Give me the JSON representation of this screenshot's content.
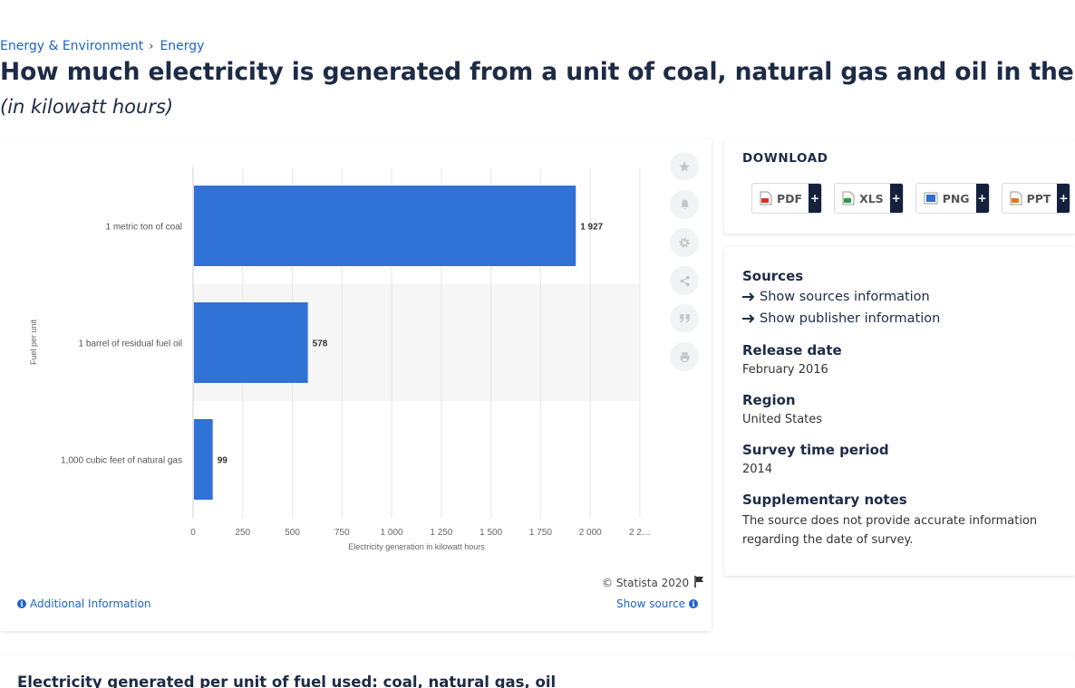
{
  "breadcrumb": {
    "items": [
      "Energy & Environment",
      "Energy"
    ],
    "separator": "›"
  },
  "header": {
    "title": "How much electricity is generated from a unit of coal, natural gas and oil in the U.S.?",
    "subtitle": "(in kilowatt hours)"
  },
  "chart_data": {
    "type": "bar",
    "orientation": "horizontal",
    "categories": [
      "1 metric ton of coal",
      "1 barrel of residual fuel oil",
      "1,000 cubic feet of natural gas"
    ],
    "values": [
      1927,
      578,
      99
    ],
    "value_labels": [
      "1 927",
      "578",
      "99"
    ],
    "xlabel": "Electricity generation in kilowatt hours",
    "ylabel": "Fuel per unit",
    "xticks": [
      0,
      250,
      500,
      750,
      1000,
      1250,
      1500,
      1750,
      2000,
      2250
    ],
    "xtick_labels": [
      "0",
      "250",
      "500",
      "750",
      "1 000",
      "1 250",
      "1 500",
      "1 750",
      "2 000",
      "2 2…"
    ],
    "xlim": [
      0,
      2250
    ],
    "grid": true,
    "bar_color": "#3072d6"
  },
  "footer": {
    "copyright": "© Statista 2020",
    "additional_info": "Additional Information",
    "show_source": "Show source"
  },
  "tools": [
    "star-icon",
    "bell-icon",
    "gear-icon",
    "share-icon",
    "quote-icon",
    "print-icon"
  ],
  "download": {
    "title": "DOWNLOAD",
    "formats": [
      {
        "label": "PDF",
        "plus": "+",
        "color": "#d8332b"
      },
      {
        "label": "XLS",
        "plus": "+",
        "color": "#2e9a45"
      },
      {
        "label": "PNG",
        "plus": "+",
        "color": "#2f6ec9"
      },
      {
        "label": "PPT",
        "plus": "+",
        "color": "#e07a1f"
      }
    ]
  },
  "info": {
    "sources_label": "Sources",
    "show_sources": "Show sources information",
    "show_publisher": "Show publisher information",
    "release_label": "Release date",
    "release_value": "February 2016",
    "region_label": "Region",
    "region_value": "United States",
    "survey_label": "Survey time period",
    "survey_value": "2014",
    "notes_label": "Supplementary notes",
    "notes_value": "The source does not provide accurate information regarding the date of survey."
  },
  "bottom": {
    "title": "Electricity generated per unit of fuel used: coal, natural gas, oil"
  }
}
